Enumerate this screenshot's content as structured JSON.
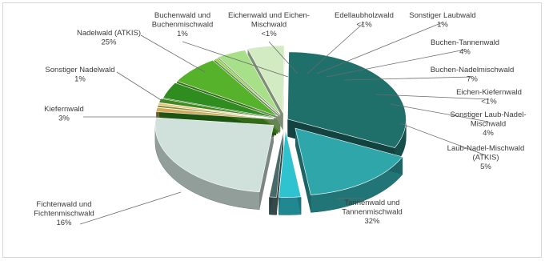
{
  "chart_data": {
    "type": "pie",
    "style": "3d-exploded",
    "legend": "none",
    "slices": [
      {
        "label": "Tannenwald und Tannenmischwald",
        "display": "32%",
        "value": 32,
        "color": "#1f6f6a"
      },
      {
        "label": "Fichtenwald und Fichtenmischwald",
        "display": "16%",
        "value": 16,
        "color": "#2fa7aa"
      },
      {
        "label": "Kiefernwald",
        "display": "3%",
        "value": 3,
        "color": "#2fc2cf"
      },
      {
        "label": "Sonstiger Nadelwald",
        "display": "1%",
        "value": 1,
        "color": "#4a6a6a"
      },
      {
        "label": "Nadelwald (ATKIS)",
        "display": "25%",
        "value": 25,
        "color": "#cfe1da"
      },
      {
        "label": "Buchenwald und Buchenmischwald",
        "display": "1%",
        "value": 1,
        "color": "#d4a95a"
      },
      {
        "label": "Eichenwald und Eichen-Mischwald",
        "display": "<1%",
        "value": 0.5,
        "color": "#7f8f2a"
      },
      {
        "label": "Edellaubholzwald",
        "display": "<1%",
        "value": 0.5,
        "color": "#f0c070"
      },
      {
        "label": "Sonstiger Laubwald",
        "display": "1%",
        "value": 1,
        "color": "#3f8a1f"
      },
      {
        "label": "Buchen-Tannenwald",
        "display": "4%",
        "value": 4,
        "color": "#2e8d1e"
      },
      {
        "label": "Buchen-Nadelmischwald",
        "display": "7%",
        "value": 7,
        "color": "#56b22a"
      },
      {
        "label": "Eichen-Kiefernwald",
        "display": "<1%",
        "value": 0.5,
        "color": "#8fd44a"
      },
      {
        "label": "Sonstiger Laub-Nadel-Mischwald",
        "display": "4%",
        "value": 4,
        "color": "#a8e08a"
      },
      {
        "label": "Laub-Nadel-Mischwald (ATKIS)",
        "display": "5%",
        "value": 5,
        "color": "#d3ebc2"
      }
    ]
  }
}
